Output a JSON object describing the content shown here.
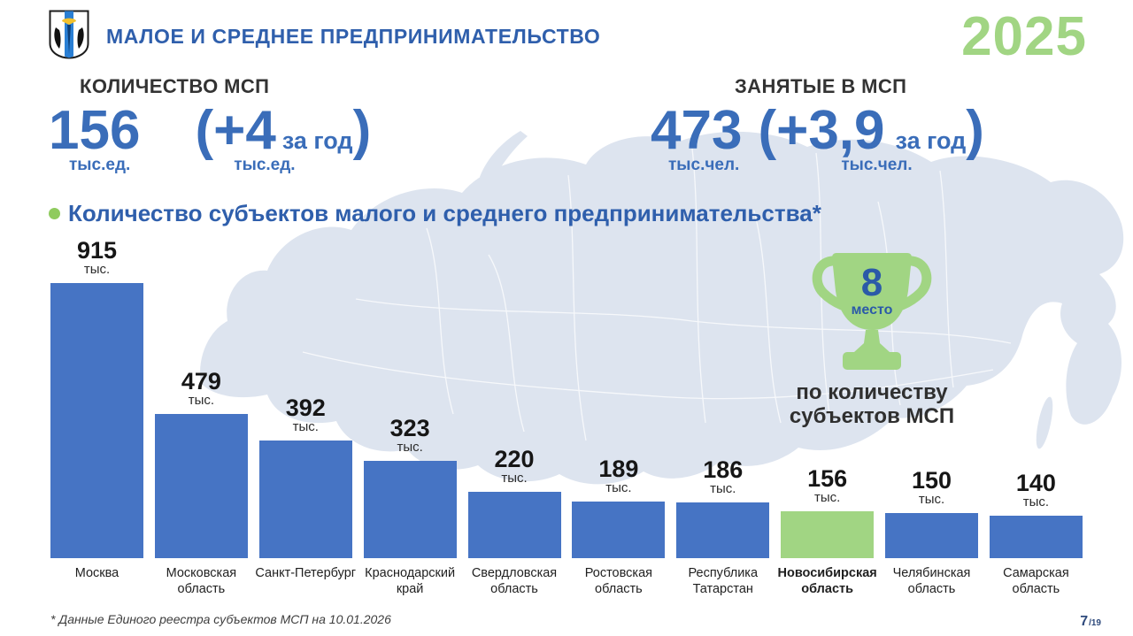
{
  "header": {
    "title": "МАЛОЕ И СРЕДНЕЕ ПРЕДПРИНИМАТЕЛЬСТВО",
    "year": "2025"
  },
  "stats": {
    "left": {
      "label": "КОЛИЧЕСТВО МСП",
      "value": "156",
      "value_unit": "тыс.ед.",
      "open_paren": "(",
      "delta": "+4",
      "delta_caption": "за год",
      "close_paren": ")",
      "delta_unit": "тыс.ед."
    },
    "right": {
      "label": "ЗАНЯТЫЕ В МСП",
      "value": "473",
      "value_unit": "тыс.чел.",
      "open_paren": "(",
      "delta": "+3,9",
      "delta_caption": "за год",
      "close_paren": ")",
      "delta_unit": "тыс.чел."
    }
  },
  "chart_data": {
    "type": "bar",
    "title": "Количество субъектов малого и среднего предпринимательства*",
    "categories": [
      "Москва",
      "Московская область",
      "Санкт-Петербург",
      "Краснодарский край",
      "Свердловская область",
      "Ростовская область",
      "Республика Татарстан",
      "Новосибирская область",
      "Челябинская область",
      "Самарская область"
    ],
    "values": [
      915,
      479,
      392,
      323,
      220,
      189,
      186,
      156,
      150,
      140
    ],
    "value_unit": "тыс.",
    "highlight_category": "Новосибирская область",
    "bar_color": "#4674c4",
    "highlight_color": "#a1d583",
    "background": "russia-map-silhouette",
    "ylim": [
      0,
      1000
    ]
  },
  "rank_badge": {
    "rank": "8",
    "rank_label": "место",
    "caption": "по количеству субъектов МСП"
  },
  "footer": {
    "note": "* Данные Единого реестра субъектов МСП на 10.01.2026",
    "page_number": "7",
    "page_total": "/19"
  },
  "colors": {
    "accent_blue": "#2f5fac",
    "number_blue": "#3a6db9",
    "bar_blue": "#4674c4",
    "accent_green": "#a1d583",
    "map_fill": "#dde4ef"
  }
}
